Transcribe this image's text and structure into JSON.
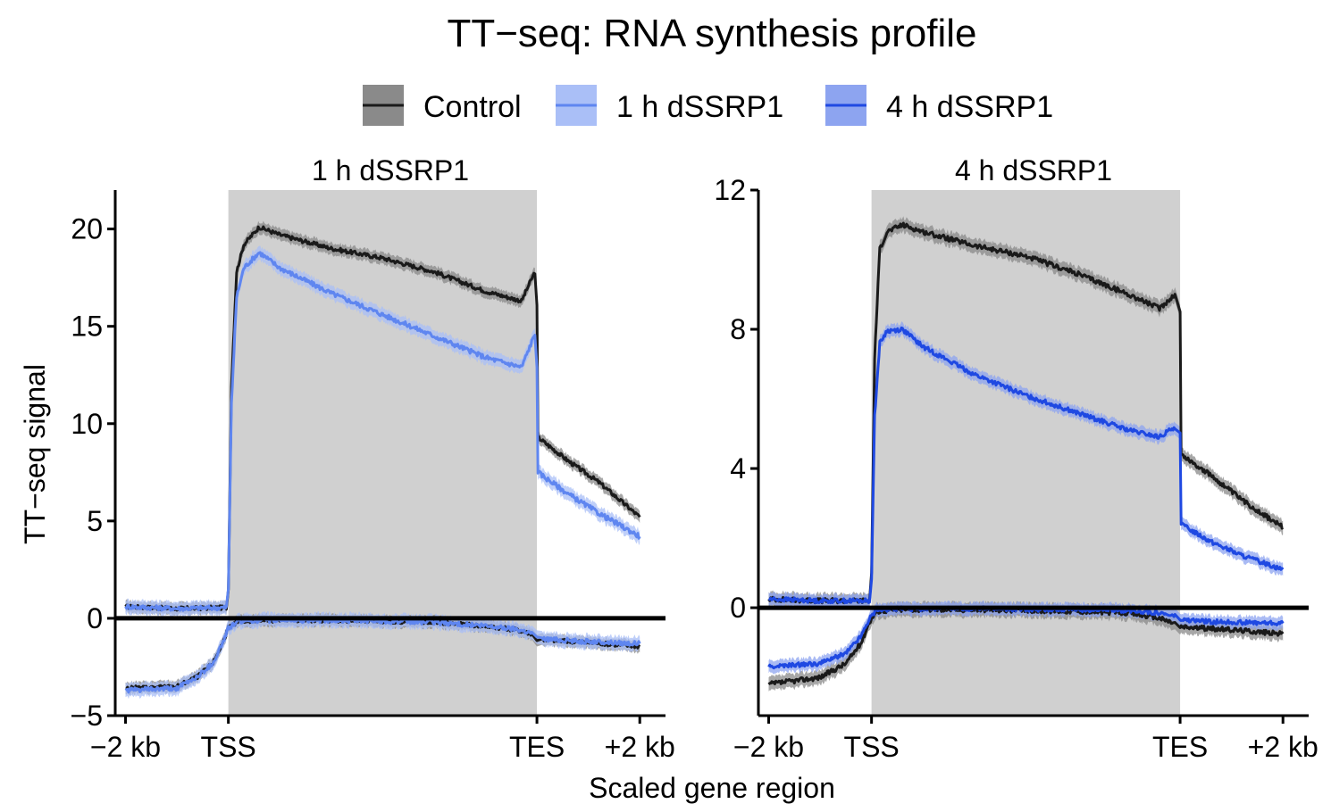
{
  "figure": {
    "title": "TT−seq: RNA synthesis profile",
    "ylabel": "TT−seq signal",
    "xlabel": "Scaled gene region"
  },
  "legend": {
    "items": [
      {
        "label": "Control",
        "color": "#1a1a1a",
        "band_color": "#8a8a8a"
      },
      {
        "label": "1 h dSSRP1",
        "color": "#5f86f0",
        "band_color": "#aabff7"
      },
      {
        "label": "4 h dSSRP1",
        "color": "#1f49e2",
        "band_color": "#8da4f0"
      }
    ]
  },
  "colors": {
    "gene_body_shade": "#d0d0d0",
    "axis": "#000000"
  },
  "chart_data": [
    {
      "type": "line",
      "panel_title": "1 h dSSRP1",
      "x_ticks": [
        "−2 kb",
        "TSS",
        "TES",
        "+2 kb"
      ],
      "x_tick_positions": [
        0,
        1,
        4,
        5
      ],
      "x_range": [
        -0.1,
        5.25
      ],
      "shaded_region": [
        1,
        4
      ],
      "y_ticks": [
        "−5",
        "0",
        "5",
        "10",
        "15",
        "20"
      ],
      "y_tick_values": [
        -5,
        0,
        5,
        10,
        15,
        20
      ],
      "ylim": [
        -5,
        22
      ],
      "zero_line": true,
      "series": [
        {
          "name": "Control",
          "color": "#1a1a1a",
          "band_color": "#8a8a8a",
          "band": 0.3,
          "sense": [
            [
              0,
              0.6
            ],
            [
              0.5,
              0.5
            ],
            [
              0.98,
              0.55
            ],
            [
              1.0,
              1.5
            ],
            [
              1.03,
              12
            ],
            [
              1.08,
              17.8
            ],
            [
              1.15,
              19.2
            ],
            [
              1.3,
              20.1
            ],
            [
              1.5,
              19.7
            ],
            [
              2.0,
              19.0
            ],
            [
              2.5,
              18.5
            ],
            [
              3.0,
              17.8
            ],
            [
              3.5,
              16.8
            ],
            [
              3.85,
              16.3
            ],
            [
              3.98,
              17.8
            ],
            [
              4.0,
              16.0
            ],
            [
              4.01,
              9.3
            ],
            [
              4.3,
              8.1
            ],
            [
              4.6,
              7.0
            ],
            [
              5.0,
              5.2
            ]
          ],
          "antisense": [
            [
              0,
              -3.6
            ],
            [
              0.5,
              -3.5
            ],
            [
              0.7,
              -3.0
            ],
            [
              0.85,
              -2.3
            ],
            [
              0.95,
              -1.2
            ],
            [
              1.0,
              -0.5
            ],
            [
              1.1,
              -0.15
            ],
            [
              1.3,
              -0.1
            ],
            [
              2.0,
              -0.1
            ],
            [
              3.0,
              -0.2
            ],
            [
              3.5,
              -0.4
            ],
            [
              3.8,
              -0.6
            ],
            [
              3.95,
              -0.8
            ],
            [
              4.0,
              -1.1
            ],
            [
              4.05,
              -1.1
            ],
            [
              4.5,
              -1.25
            ],
            [
              5.0,
              -1.45
            ]
          ]
        },
        {
          "name": "1 h dSSRP1",
          "color": "#5f86f0",
          "band_color": "#aabff7",
          "band": 0.35,
          "sense": [
            [
              0,
              0.6
            ],
            [
              0.5,
              0.5
            ],
            [
              0.98,
              0.55
            ],
            [
              1.0,
              1.5
            ],
            [
              1.03,
              11
            ],
            [
              1.08,
              16.5
            ],
            [
              1.15,
              18.0
            ],
            [
              1.3,
              18.8
            ],
            [
              1.5,
              18.0
            ],
            [
              2.0,
              16.7
            ],
            [
              2.5,
              15.6
            ],
            [
              3.0,
              14.5
            ],
            [
              3.5,
              13.4
            ],
            [
              3.85,
              12.9
            ],
            [
              3.98,
              14.6
            ],
            [
              4.0,
              13.0
            ],
            [
              4.01,
              7.5
            ],
            [
              4.3,
              6.4
            ],
            [
              4.6,
              5.4
            ],
            [
              5.0,
              4.2
            ]
          ],
          "antisense": [
            [
              0,
              -3.7
            ],
            [
              0.5,
              -3.6
            ],
            [
              0.7,
              -3.0
            ],
            [
              0.85,
              -2.3
            ],
            [
              0.95,
              -1.2
            ],
            [
              1.0,
              -0.5
            ],
            [
              1.1,
              -0.15
            ],
            [
              1.3,
              -0.1
            ],
            [
              2.0,
              -0.1
            ],
            [
              3.0,
              -0.2
            ],
            [
              3.5,
              -0.4
            ],
            [
              3.8,
              -0.55
            ],
            [
              3.95,
              -0.75
            ],
            [
              4.0,
              -1.05
            ],
            [
              4.05,
              -1.05
            ],
            [
              4.5,
              -1.2
            ],
            [
              5.0,
              -1.3
            ]
          ]
        }
      ]
    },
    {
      "type": "line",
      "panel_title": "4 h dSSRP1",
      "x_ticks": [
        "−2 kb",
        "TSS",
        "TES",
        "+2 kb"
      ],
      "x_tick_positions": [
        0,
        1,
        4,
        5
      ],
      "x_range": [
        -0.1,
        5.25
      ],
      "shaded_region": [
        1,
        4
      ],
      "y_ticks": [
        "0",
        "4",
        "8",
        "12"
      ],
      "y_tick_values": [
        0,
        4,
        8,
        12
      ],
      "ylim": [
        -3.1,
        12
      ],
      "zero_line": true,
      "series": [
        {
          "name": "Control",
          "color": "#1a1a1a",
          "band_color": "#8a8a8a",
          "band": 0.2,
          "sense": [
            [
              0,
              0.25
            ],
            [
              0.5,
              0.2
            ],
            [
              0.98,
              0.2
            ],
            [
              1.0,
              1.0
            ],
            [
              1.03,
              7.2
            ],
            [
              1.08,
              10.3
            ],
            [
              1.15,
              10.8
            ],
            [
              1.3,
              11.0
            ],
            [
              1.5,
              10.8
            ],
            [
              2.0,
              10.4
            ],
            [
              2.5,
              10.1
            ],
            [
              3.0,
              9.6
            ],
            [
              3.5,
              9.0
            ],
            [
              3.8,
              8.6
            ],
            [
              3.95,
              9.0
            ],
            [
              4.0,
              8.5
            ],
            [
              4.01,
              4.4
            ],
            [
              4.3,
              3.8
            ],
            [
              4.6,
              3.1
            ],
            [
              5.0,
              2.3
            ]
          ],
          "antisense": [
            [
              0,
              -2.2
            ],
            [
              0.5,
              -2.0
            ],
            [
              0.75,
              -1.6
            ],
            [
              0.9,
              -1.0
            ],
            [
              0.98,
              -0.4
            ],
            [
              1.05,
              -0.1
            ],
            [
              1.3,
              -0.05
            ],
            [
              2.0,
              -0.05
            ],
            [
              3.0,
              -0.1
            ],
            [
              3.5,
              -0.15
            ],
            [
              3.8,
              -0.3
            ],
            [
              3.95,
              -0.45
            ],
            [
              4.0,
              -0.55
            ],
            [
              4.3,
              -0.6
            ],
            [
              4.6,
              -0.65
            ],
            [
              5.0,
              -0.75
            ]
          ]
        },
        {
          "name": "4 h dSSRP1",
          "color": "#1f49e2",
          "band_color": "#8da4f0",
          "band": 0.18,
          "sense": [
            [
              0,
              0.25
            ],
            [
              0.5,
              0.2
            ],
            [
              0.98,
              0.2
            ],
            [
              1.0,
              0.8
            ],
            [
              1.03,
              5.5
            ],
            [
              1.08,
              7.6
            ],
            [
              1.15,
              7.95
            ],
            [
              1.3,
              8.0
            ],
            [
              1.5,
              7.5
            ],
            [
              2.0,
              6.7
            ],
            [
              2.5,
              6.1
            ],
            [
              3.0,
              5.6
            ],
            [
              3.5,
              5.1
            ],
            [
              3.8,
              4.9
            ],
            [
              3.95,
              5.2
            ],
            [
              4.0,
              5.0
            ],
            [
              4.01,
              2.4
            ],
            [
              4.3,
              1.9
            ],
            [
              4.6,
              1.5
            ],
            [
              5.0,
              1.1
            ]
          ],
          "antisense": [
            [
              0,
              -1.7
            ],
            [
              0.5,
              -1.6
            ],
            [
              0.75,
              -1.3
            ],
            [
              0.9,
              -0.8
            ],
            [
              0.98,
              -0.3
            ],
            [
              1.05,
              -0.05
            ],
            [
              1.3,
              -0.03
            ],
            [
              2.0,
              -0.03
            ],
            [
              3.0,
              -0.05
            ],
            [
              3.5,
              -0.08
            ],
            [
              3.8,
              -0.15
            ],
            [
              3.95,
              -0.25
            ],
            [
              4.0,
              -0.35
            ],
            [
              4.3,
              -0.4
            ],
            [
              5.0,
              -0.45
            ]
          ]
        }
      ]
    }
  ]
}
